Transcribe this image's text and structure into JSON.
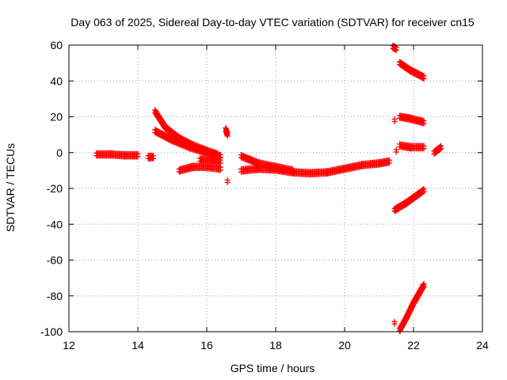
{
  "chart_data": {
    "type": "scatter",
    "title": "Day 063 of 2025, Sidereal Day-to-day VTEC variation (SDTVAR) for receiver cn15",
    "xlabel": "GPS time / hours",
    "ylabel": "SDTVAR / TECUs",
    "xlim": [
      12,
      24
    ],
    "ylim": [
      -100,
      60
    ],
    "xticks": [
      "12",
      "14",
      "16",
      "18",
      "20",
      "22",
      "24"
    ],
    "yticks": [
      "60",
      "40",
      "20",
      "0",
      "-20",
      "-40",
      "-60",
      "-80",
      "-100"
    ],
    "grid": true,
    "marker": "plus",
    "color": "#ff0000",
    "series": [
      {
        "tracks": [
          {
            "x": [
              12.8,
              13.2,
              13.6,
              14.0
            ],
            "y": [
              -1,
              -1,
              -1.5,
              -1.5
            ]
          },
          {
            "x": [
              14.3,
              14.45
            ],
            "y": [
              -2.5,
              -2.5
            ]
          },
          {
            "x": [
              14.5,
              14.8,
              15.2,
              15.6,
              16.0,
              16.3
            ],
            "y": [
              23,
              14,
              8,
              4,
              1,
              -1
            ]
          },
          {
            "x": [
              14.5,
              15.0,
              15.5,
              16.0,
              16.4
            ],
            "y": [
              12,
              7,
              3,
              0,
              -2
            ]
          },
          {
            "x": [
              15.8,
              16.1,
              16.4
            ],
            "y": [
              -4,
              -4,
              -5
            ]
          },
          {
            "x": [
              15.2,
              15.6,
              16.0,
              16.4
            ],
            "y": [
              -10,
              -8,
              -8,
              -9
            ]
          },
          {
            "x": [
              16.55,
              16.6
            ],
            "y": [
              13,
              10
            ]
          },
          {
            "x": [
              16.6
            ],
            "y": [
              -16
            ]
          },
          {
            "x": [
              17.0,
              17.5,
              18.0,
              18.5
            ],
            "y": [
              -2,
              -6,
              -8,
              -10
            ]
          },
          {
            "x": [
              17.0,
              17.5,
              18.0,
              18.5,
              19.0,
              19.5,
              20.0,
              20.5,
              21.0,
              21.3
            ],
            "y": [
              -10,
              -9,
              -9.5,
              -11,
              -11.5,
              -11,
              -9,
              -7,
              -6,
              -5
            ]
          },
          {
            "x": [
              21.4,
              21.5
            ],
            "y": [
              59,
              58
            ]
          },
          {
            "x": [
              21.6,
              21.9,
              22.3
            ],
            "y": [
              50,
              46,
              42
            ]
          },
          {
            "x": [
              21.45
            ],
            "y": [
              18
            ]
          },
          {
            "x": [
              21.6,
              21.9,
              22.3
            ],
            "y": [
              20,
              19,
              17
            ]
          },
          {
            "x": [
              21.6,
              21.9,
              22.3
            ],
            "y": [
              4,
              3,
              3
            ]
          },
          {
            "x": [
              21.5
            ],
            "y": [
              1
            ]
          },
          {
            "x": [
              22.6,
              22.8
            ],
            "y": [
              0,
              3
            ]
          },
          {
            "x": [
              21.45,
              21.8,
              22.3
            ],
            "y": [
              -32,
              -28,
              -21
            ]
          },
          {
            "x": [
              21.45
            ],
            "y": [
              -95
            ]
          },
          {
            "x": [
              21.6,
              21.8,
              22.0,
              22.3
            ],
            "y": [
              -99,
              -92,
              -84,
              -74
            ]
          }
        ]
      }
    ]
  }
}
